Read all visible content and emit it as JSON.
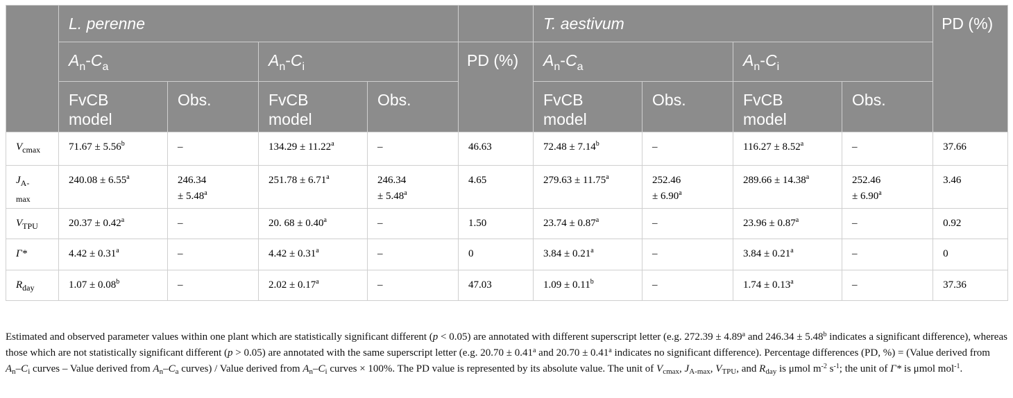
{
  "header": {
    "plant_1": "L. perenne",
    "plant_2": "T. aestivum",
    "pd": "PD (%)",
    "curve_ca": {
      "a": "A",
      "a_sub": "n",
      "dash": "-",
      "c": "C",
      "c_sub": "a"
    },
    "curve_ci": {
      "a": "A",
      "a_sub": "n",
      "dash": "-",
      "c": "C",
      "c_sub": "i"
    },
    "fvcb_1": "FvCB",
    "fvcb_2": "model",
    "obs": "Obs."
  },
  "rows": [
    {
      "param": "V",
      "param_sub": "cmax",
      "lp_ca_fvcb": "71.67 ± 5.56",
      "lp_ca_fvcb_sup": "b",
      "lp_ca_obs": "–",
      "lp_ci_fvcb": "134.29 ± 11.22",
      "lp_ci_fvcb_sup": "a",
      "lp_ci_obs": "–",
      "lp_pd": "46.63",
      "ta_ca_fvcb": "72.48 ± 7.14",
      "ta_ca_fvcb_sup": "b",
      "ta_ca_obs": "–",
      "ta_ci_fvcb": "116.27 ± 8.52",
      "ta_ci_fvcb_sup": "a",
      "ta_ci_obs": "–",
      "ta_pd": "37.66"
    },
    {
      "param": "J",
      "param_sub": "A-max",
      "param_sub_1": "A-",
      "param_sub_2": "max",
      "lp_ca_fvcb": "240.08 ± 6.55",
      "lp_ca_fvcb_sup": "a",
      "lp_ca_obs_1": "246.34",
      "lp_ca_obs_2": "± 5.48",
      "lp_ca_obs_sup": "a",
      "lp_ci_fvcb": "251.78 ± 6.71",
      "lp_ci_fvcb_sup": "a",
      "lp_ci_obs_1": "246.34",
      "lp_ci_obs_2": "± 5.48",
      "lp_ci_obs_sup": "a",
      "lp_pd": "4.65",
      "ta_ca_fvcb": "279.63 ± 11.75",
      "ta_ca_fvcb_sup": "a",
      "ta_ca_obs_1": "252.46",
      "ta_ca_obs_2": "± 6.90",
      "ta_ca_obs_sup": "a",
      "ta_ci_fvcb": "289.66 ± 14.38",
      "ta_ci_fvcb_sup": "a",
      "ta_ci_obs_1": "252.46",
      "ta_ci_obs_2": "± 6.90",
      "ta_ci_obs_sup": "a",
      "ta_pd": "3.46"
    },
    {
      "param": "V",
      "param_sub": "TPU",
      "lp_ca_fvcb": "20.37 ± 0.42",
      "lp_ca_fvcb_sup": "a",
      "lp_ca_obs": "–",
      "lp_ci_fvcb": "20. 68 ± 0.40",
      "lp_ci_fvcb_sup": "a",
      "lp_ci_obs": "–",
      "lp_pd": "1.50",
      "ta_ca_fvcb": "23.74 ± 0.87",
      "ta_ca_fvcb_sup": "a",
      "ta_ca_obs": "–",
      "ta_ci_fvcb": "23.96 ± 0.87",
      "ta_ci_fvcb_sup": "a",
      "ta_ci_obs": "–",
      "ta_pd": "0.92"
    },
    {
      "param": "Γ*",
      "param_sub": "",
      "lp_ca_fvcb": "4.42 ± 0.31",
      "lp_ca_fvcb_sup": "a",
      "lp_ca_obs": "–",
      "lp_ci_fvcb": "4.42 ± 0.31",
      "lp_ci_fvcb_sup": "a",
      "lp_ci_obs": "–",
      "lp_pd": "0",
      "ta_ca_fvcb": "3.84 ± 0.21",
      "ta_ca_fvcb_sup": "a",
      "ta_ca_obs": "–",
      "ta_ci_fvcb": "3.84 ± 0.21",
      "ta_ci_fvcb_sup": "a",
      "ta_ci_obs": "–",
      "ta_pd": "0"
    },
    {
      "param": "R",
      "param_sub": "day",
      "lp_ca_fvcb": "1.07 ± 0.08",
      "lp_ca_fvcb_sup": "b",
      "lp_ca_obs": "–",
      "lp_ci_fvcb": "2.02 ± 0.17",
      "lp_ci_fvcb_sup": "a",
      "lp_ci_obs": "–",
      "lp_pd": "47.03",
      "ta_ca_fvcb": "1.09 ± 0.11",
      "ta_ca_fvcb_sup": "b",
      "ta_ca_obs": "–",
      "ta_ci_fvcb": "1.74 ± 0.13",
      "ta_ci_fvcb_sup": "a",
      "ta_ci_obs": "–",
      "ta_pd": "37.36"
    }
  ],
  "footnote": {
    "t1": "Estimated and observed parameter values within one plant which are statistically significant different (",
    "p1": "p",
    "t2": " < 0.05) are annotated with different superscript letter (e.g. 272.39 ± 4.89",
    "s1": "a",
    "t3": " and 246.34 ± 5.48",
    "s2": "b",
    "t4": " indicates a significant difference), whereas those which are not statistically significant different (",
    "p2": "p",
    "t5": " > 0.05) are annotated with the same superscript letter (e.g. 20.70 ± 0.41",
    "s3": "a",
    "t6": " and 20.70 ± 0.41",
    "s4": "a",
    "t7": " indicates no significant difference). Percentage differences (PD, %) = (Value derived from ",
    "a1": "A",
    "a1s": "n",
    "a1d": "–",
    "c1": "C",
    "c1s": "i",
    "t8": " curves – Value derived from ",
    "a2": "A",
    "a2s": "n",
    "a2d": "–",
    "c2": "C",
    "c2s": "a",
    "t9": " curves) / Value derived from ",
    "a3": "A",
    "a3s": "n",
    "a3d": "–",
    "c3": "C",
    "c3s": "i",
    "t10": " curves × 100%. The PD value is represented by its absolute value. The unit of ",
    "v1": "V",
    "v1s": "cmax",
    "t11": ", ",
    "j1": "J",
    "j1s": "A-max",
    "t12": ", ",
    "v2": "V",
    "v2s": "TPU",
    "t13": ", and ",
    "r1": "R",
    "r1s": "day",
    "t14": " is μmol m",
    "e1": "-2",
    "t15": " s",
    "e2": "-1",
    "t16": "; the unit of ",
    "g1": "Γ*",
    "t17": " is μmol mol",
    "e3": "-1",
    "t18": "."
  }
}
